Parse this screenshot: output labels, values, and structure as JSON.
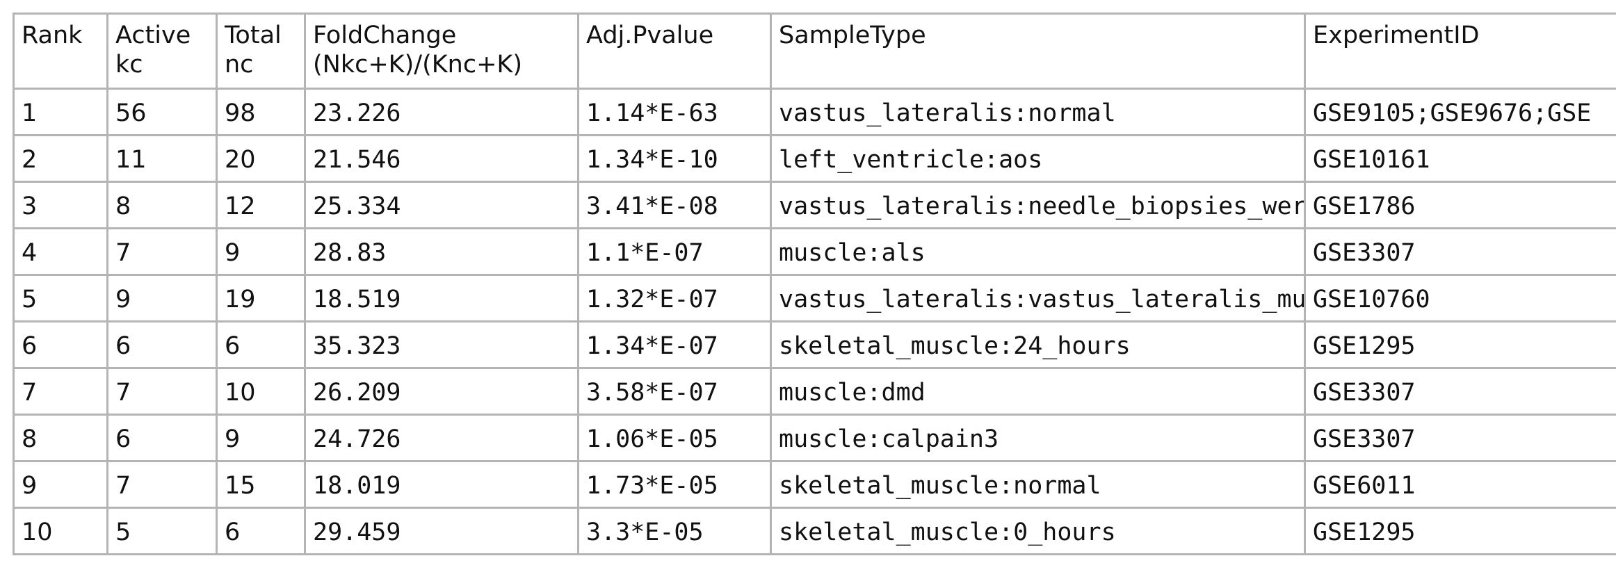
{
  "table": {
    "headers": [
      {
        "line1": "Rank",
        "line2": ""
      },
      {
        "line1": "Active",
        "line2": "kc"
      },
      {
        "line1": "Total",
        "line2": "nc"
      },
      {
        "line1": "FoldChange",
        "line2": "(Nkc+K)/(Knc+K)"
      },
      {
        "line1": "Adj.Pvalue",
        "line2": ""
      },
      {
        "line1": "SampleType",
        "line2": ""
      },
      {
        "line1": "ExperimentID",
        "line2": ""
      }
    ],
    "rows": [
      [
        "1",
        "56",
        "98",
        "23.226",
        "1.14*E-63",
        "vastus_lateralis:normal",
        "GSE9105;GSE9676;GSE"
      ],
      [
        "2",
        "11",
        "20",
        "21.546",
        "1.34*E-10",
        "left_ventricle:aos",
        "GSE10161"
      ],
      [
        "3",
        "8",
        "12",
        "25.334",
        "3.41*E-08",
        "vastus_lateralis:needle_biopsies_were_obt",
        "GSE1786"
      ],
      [
        "4",
        "7",
        "9",
        "28.83",
        "1.1*E-07",
        "muscle:als",
        "GSE3307"
      ],
      [
        "5",
        "9",
        "19",
        "18.519",
        "1.32*E-07",
        "vastus_lateralis:vastus_lateralis_muscle,_a",
        "GSE10760"
      ],
      [
        "6",
        "6",
        "6",
        "35.323",
        "1.34*E-07",
        "skeletal_muscle:24_hours",
        "GSE1295"
      ],
      [
        "7",
        "7",
        "10",
        "26.209",
        "3.58*E-07",
        "muscle:dmd",
        "GSE3307"
      ],
      [
        "8",
        "6",
        "9",
        "24.726",
        "1.06*E-05",
        "muscle:calpain3",
        "GSE3307"
      ],
      [
        "9",
        "7",
        "15",
        "18.019",
        "1.73*E-05",
        "skeletal_muscle:normal",
        "GSE6011"
      ],
      [
        "10",
        "5",
        "6",
        "29.459",
        "3.3*E-05",
        "skeletal_muscle:0_hours",
        "GSE1295"
      ]
    ]
  }
}
